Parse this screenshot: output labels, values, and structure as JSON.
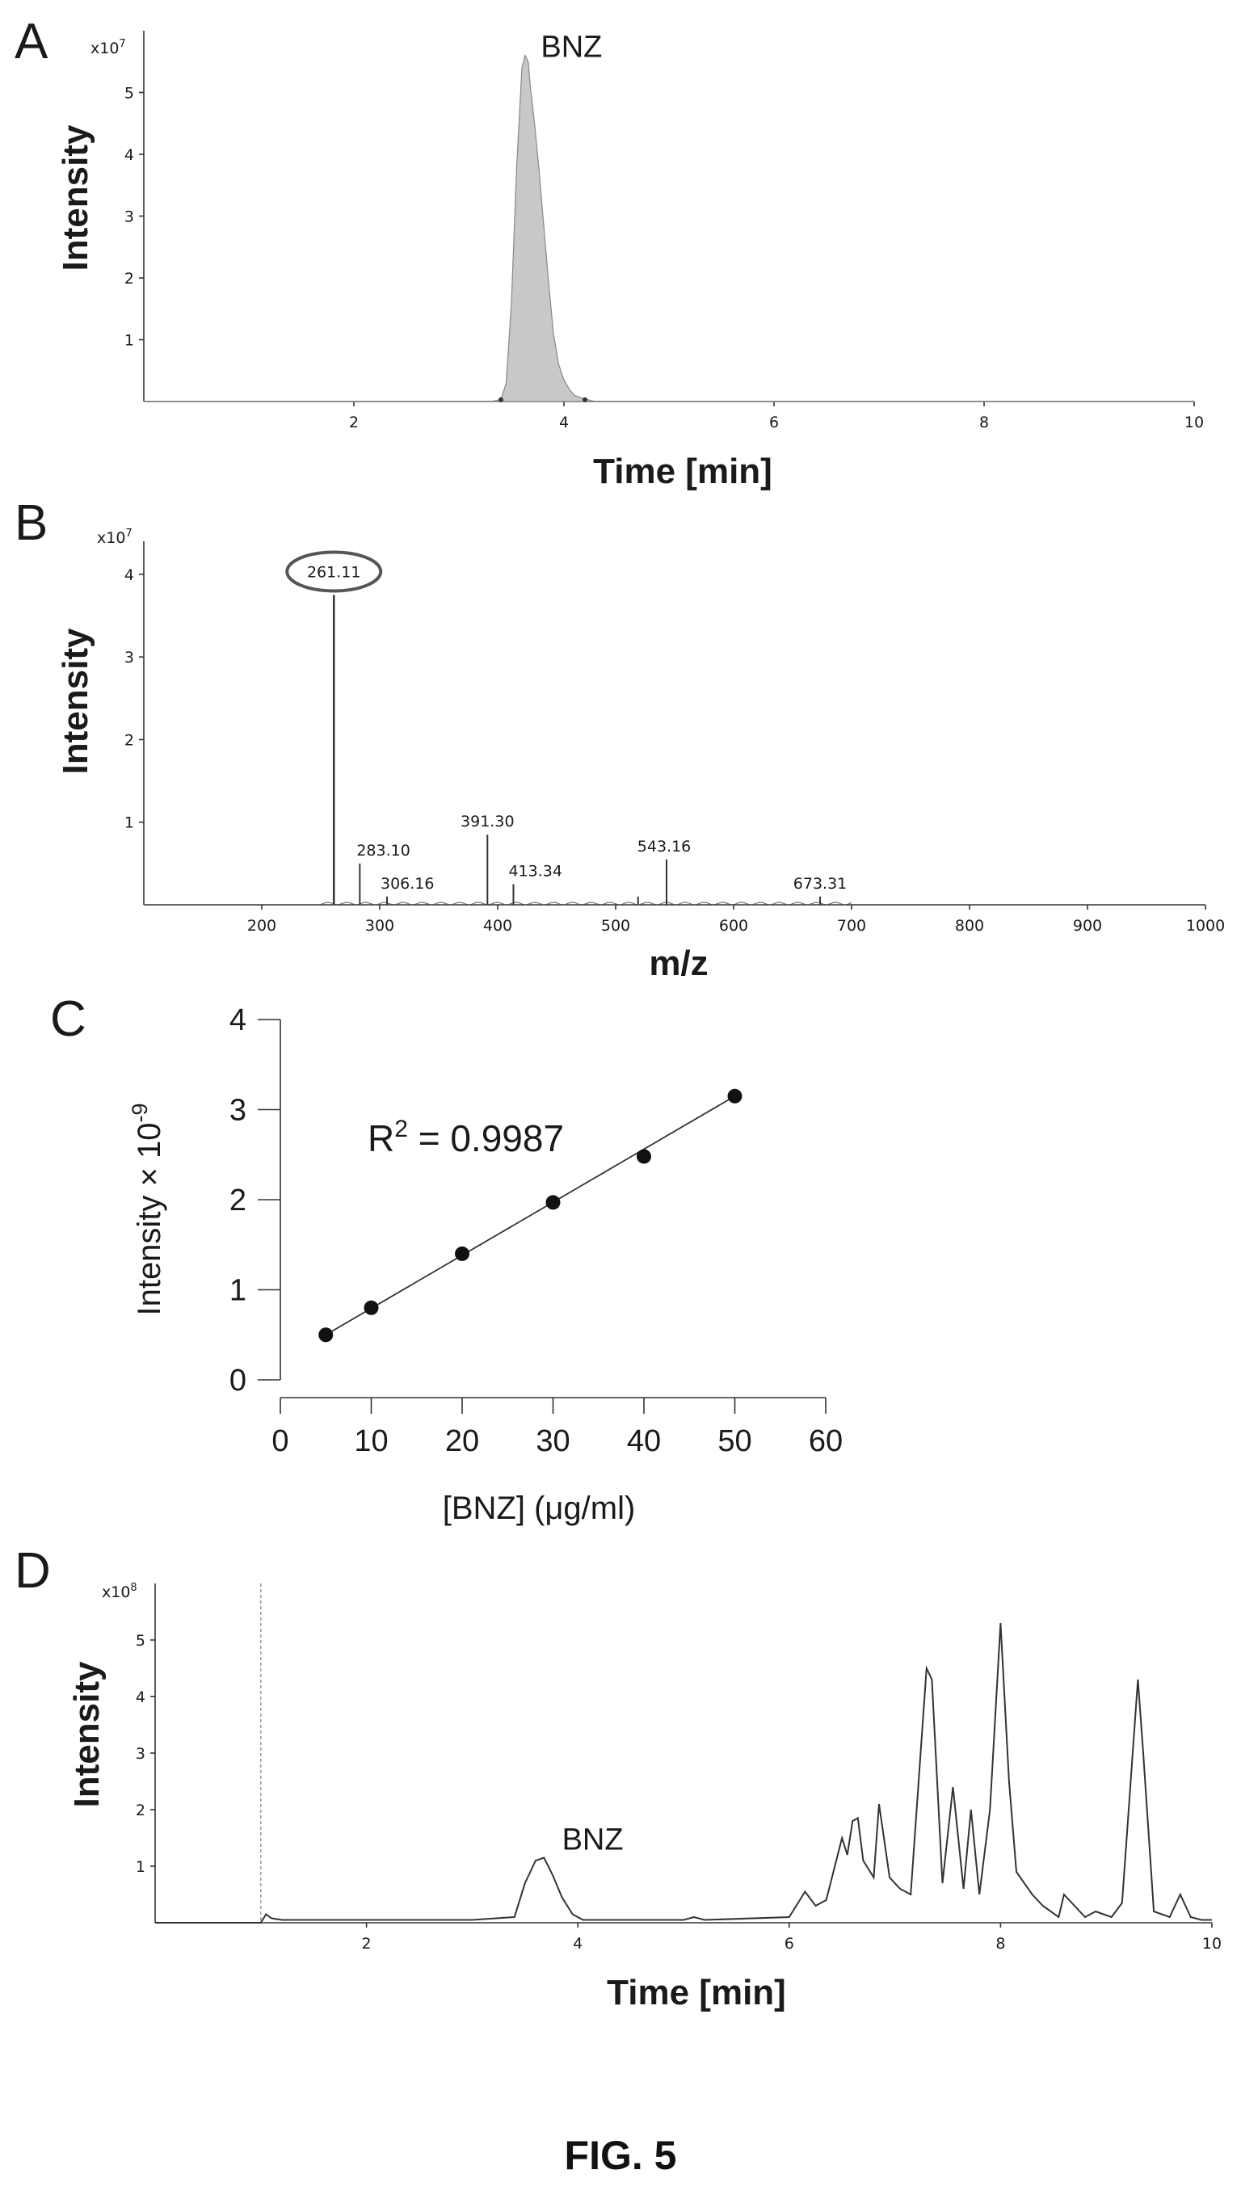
{
  "figure": {
    "caption": "FIG. 5"
  },
  "chart_data": [
    {
      "panel": "A",
      "type": "area",
      "ylabel": "Intensity",
      "xlabel": "Time [min]",
      "y_scale_label": "x10",
      "y_scale_exp": "7",
      "xlim": [
        0,
        10
      ],
      "ylim": [
        0,
        6
      ],
      "x_ticks": [
        2,
        4,
        6,
        8,
        10
      ],
      "y_ticks": [
        1,
        2,
        3,
        4,
        5
      ],
      "annotation": "BNZ",
      "x": [
        0,
        3.3,
        3.4,
        3.45,
        3.5,
        3.55,
        3.6,
        3.63,
        3.66,
        3.68,
        3.72,
        3.76,
        3.8,
        3.85,
        3.9,
        3.95,
        4.0,
        4.05,
        4.1,
        4.2,
        4.3,
        10
      ],
      "values": [
        0,
        0,
        0.03,
        0.3,
        1.6,
        3.8,
        5.4,
        5.6,
        5.5,
        5.1,
        4.5,
        3.8,
        3.0,
        2.0,
        1.1,
        0.6,
        0.35,
        0.2,
        0.1,
        0.04,
        0,
        0
      ]
    },
    {
      "panel": "B",
      "type": "bar",
      "ylabel": "Intensity",
      "xlabel": "m/z",
      "y_scale_label": "x10",
      "y_scale_exp": "7",
      "xlim": [
        100,
        1000
      ],
      "ylim": [
        0,
        4.4
      ],
      "x_ticks": [
        200,
        300,
        400,
        500,
        600,
        700,
        800,
        900,
        1000
      ],
      "y_ticks": [
        1,
        2,
        3,
        4
      ],
      "peaks": [
        {
          "mz": 261.11,
          "value": 3.75,
          "label": "261.11",
          "highlighted": true
        },
        {
          "mz": 283.1,
          "value": 0.5,
          "label": "283.10"
        },
        {
          "mz": 306.16,
          "value": 0.1,
          "label": "306.16"
        },
        {
          "mz": 391.3,
          "value": 0.85,
          "label": "391.30"
        },
        {
          "mz": 413.34,
          "value": 0.25,
          "label": "413.34"
        },
        {
          "mz": 519.0,
          "value": 0.1,
          "label": ""
        },
        {
          "mz": 543.16,
          "value": 0.55,
          "label": "543.16"
        },
        {
          "mz": 673.31,
          "value": 0.1,
          "label": "673.31"
        }
      ]
    },
    {
      "panel": "C",
      "type": "scatter",
      "ylabel": "Intensity × 10",
      "ylabel_exp": "-9",
      "xlabel": "[BNZ] (μg/ml)",
      "xlim": [
        0,
        60
      ],
      "ylim": [
        0,
        4
      ],
      "x_ticks": [
        0,
        10,
        20,
        30,
        40,
        50,
        60
      ],
      "y_ticks": [
        0,
        1,
        2,
        3,
        4
      ],
      "x": [
        5,
        10,
        20,
        30,
        40,
        50
      ],
      "values": [
        0.5,
        0.8,
        1.4,
        1.97,
        2.48,
        3.15
      ],
      "fit_line": {
        "x": [
          5,
          50
        ],
        "y": [
          0.5,
          3.15
        ]
      },
      "r2_label": "R",
      "r2_exp": "2",
      "r2_value": " = 0.9987"
    },
    {
      "panel": "D",
      "type": "line",
      "ylabel": "Intensity",
      "xlabel": "Time [min]",
      "y_scale_label": "x10",
      "y_scale_exp": "8",
      "xlim": [
        0,
        10
      ],
      "ylim": [
        0,
        6
      ],
      "x_ticks": [
        2,
        4,
        6,
        8,
        10
      ],
      "y_ticks": [
        1,
        2,
        3,
        4,
        5
      ],
      "annotation": "BNZ",
      "dashed_marker_x": 1.0,
      "x": [
        0,
        1.0,
        1.05,
        1.1,
        1.2,
        2.0,
        3.0,
        3.4,
        3.5,
        3.6,
        3.68,
        3.76,
        3.85,
        3.95,
        4.05,
        4.2,
        5.0,
        5.1,
        5.2,
        6.0,
        6.15,
        6.25,
        6.35,
        6.5,
        6.55,
        6.6,
        6.65,
        6.7,
        6.8,
        6.85,
        6.95,
        7.05,
        7.15,
        7.3,
        7.35,
        7.45,
        7.55,
        7.65,
        7.72,
        7.8,
        7.9,
        8.0,
        8.08,
        8.15,
        8.3,
        8.4,
        8.55,
        8.6,
        8.8,
        8.9,
        9.05,
        9.15,
        9.3,
        9.35,
        9.45,
        9.6,
        9.7,
        9.8,
        9.9,
        10.0
      ],
      "values": [
        0,
        0,
        0.15,
        0.08,
        0.05,
        0.05,
        0.05,
        0.1,
        0.7,
        1.1,
        1.15,
        0.85,
        0.45,
        0.15,
        0.05,
        0.05,
        0.05,
        0.1,
        0.05,
        0.1,
        0.55,
        0.3,
        0.4,
        1.5,
        1.2,
        1.8,
        1.85,
        1.1,
        0.8,
        2.1,
        0.8,
        0.6,
        0.5,
        4.5,
        4.3,
        0.7,
        2.4,
        0.6,
        2.0,
        0.5,
        2.0,
        5.3,
        2.5,
        0.9,
        0.5,
        0.3,
        0.1,
        0.5,
        0.1,
        0.2,
        0.1,
        0.35,
        4.3,
        3.0,
        0.2,
        0.1,
        0.5,
        0.1,
        0.05,
        0.05
      ]
    }
  ]
}
